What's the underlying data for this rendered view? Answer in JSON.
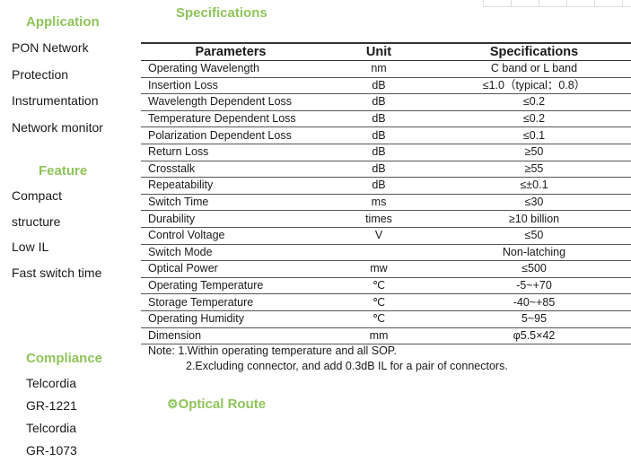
{
  "sections": {
    "application": "Application",
    "feature": "Feature",
    "compliance": "Compliance",
    "specifications": "Specifications",
    "optical_route": "Optical Route"
  },
  "application_items": [
    "PON Network",
    "Protection",
    "Instrumentation",
    "Network monitor"
  ],
  "feature_items": [
    "Compact",
    "structure",
    "Low IL",
    "Fast switch time"
  ],
  "compliance_items": [
    "Telcordia",
    "GR-1221",
    "Telcordia",
    "GR-1073"
  ],
  "table": {
    "headers": [
      "Parameters",
      "Unit",
      "Specifications"
    ],
    "rows": [
      [
        "Operating Wavelength",
        "nm",
        "C band or L band"
      ],
      [
        "Insertion Loss",
        "dB",
        "≤1.0（typical：0.8）"
      ],
      [
        "Wavelength Dependent Loss",
        "dB",
        "≤0.2"
      ],
      [
        "Temperature Dependent Loss",
        "dB",
        "≤0.2"
      ],
      [
        "Polarization Dependent Loss",
        "dB",
        "≤0.1"
      ],
      [
        "Return Loss",
        "dB",
        "≥50"
      ],
      [
        "Crosstalk",
        "dB",
        "≥55"
      ],
      [
        "Repeatability",
        "dB",
        "≤±0.1"
      ],
      [
        "Switch Time",
        "ms",
        "≤30"
      ],
      [
        "Durability",
        "times",
        "≥10 billion"
      ],
      [
        "Control Voltage",
        "V",
        "≤50"
      ],
      [
        "Switch Mode",
        "",
        "Non-latching"
      ],
      [
        "Optical Power",
        "mw",
        "≤500"
      ],
      [
        "Operating Temperature",
        "℃",
        "-5~+70"
      ],
      [
        "Storage Temperature",
        "℃",
        "-40~+85"
      ],
      [
        "Operating Humidity",
        "℃",
        "5~95"
      ],
      [
        "Dimension",
        "mm",
        "φ5.5×42"
      ]
    ]
  },
  "notes": [
    "Note: 1.Within operating temperature and all SOP.",
    "2.Excluding connector, and add 0.3dB IL for a pair of connectors."
  ],
  "colors": {
    "heading": "#8fc45a"
  },
  "icons": {
    "optical_route": "gear-icon"
  }
}
